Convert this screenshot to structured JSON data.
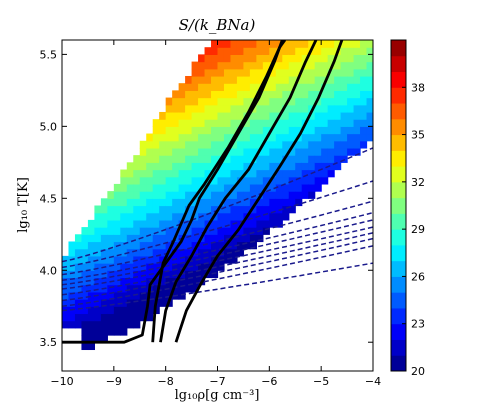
{
  "chart_data": {
    "type": "heatmap",
    "title": "S/(k_BNa)",
    "xlabel": "lg₁₀ρ[g cm⁻³]",
    "ylabel": "lg₁₀ T[K]",
    "xlim": [
      -10,
      -4
    ],
    "ylim": [
      3.3,
      5.6
    ],
    "x_ticks": [
      "−10",
      "−9",
      "−8",
      "−7",
      "−6",
      "−5",
      "−4"
    ],
    "x_tick_values": [
      -10,
      -9,
      -8,
      -7,
      -6,
      -5,
      -4
    ],
    "y_ticks": [
      "3.5",
      "4.0",
      "4.5",
      "5.0",
      "5.5"
    ],
    "y_tick_values": [
      3.5,
      4.0,
      4.5,
      5.0,
      5.5
    ],
    "colorbar": {
      "range": [
        20,
        41
      ],
      "ticks": [
        "20",
        "23",
        "26",
        "29",
        "32",
        "35",
        "38"
      ],
      "tick_values": [
        20,
        23,
        26,
        29,
        32,
        35,
        38
      ],
      "levels": 21,
      "colormap": "jet"
    },
    "grid": false,
    "solid_curves": [
      {
        "points": [
          [
            -10,
            3.5
          ],
          [
            -8.8,
            3.5
          ],
          [
            -8.45,
            3.55
          ],
          [
            -8.35,
            3.75
          ],
          [
            -8.3,
            3.9
          ],
          [
            -8.0,
            4.05
          ],
          [
            -7.7,
            4.2
          ],
          [
            -7.5,
            4.35
          ],
          [
            -7.35,
            4.5
          ],
          [
            -7.0,
            4.7
          ],
          [
            -6.6,
            4.95
          ],
          [
            -6.2,
            5.2
          ],
          [
            -5.9,
            5.45
          ],
          [
            -5.75,
            5.6
          ]
        ]
      },
      {
        "points": [
          [
            -8.25,
            3.5
          ],
          [
            -8.2,
            3.75
          ],
          [
            -8.05,
            4.05
          ],
          [
            -7.85,
            4.2
          ],
          [
            -7.55,
            4.45
          ],
          [
            -7.25,
            4.6
          ],
          [
            -6.8,
            4.85
          ],
          [
            -6.4,
            5.1
          ],
          [
            -6.05,
            5.35
          ],
          [
            -5.8,
            5.55
          ],
          [
            -5.7,
            5.6
          ]
        ]
      },
      {
        "points": [
          [
            -8.1,
            3.5
          ],
          [
            -8.0,
            3.72
          ],
          [
            -7.8,
            3.92
          ],
          [
            -7.5,
            4.1
          ],
          [
            -7.2,
            4.3
          ],
          [
            -6.85,
            4.5
          ],
          [
            -6.4,
            4.7
          ],
          [
            -6.0,
            4.95
          ],
          [
            -5.6,
            5.2
          ],
          [
            -5.3,
            5.45
          ],
          [
            -5.1,
            5.6
          ]
        ]
      },
      {
        "points": [
          [
            -7.8,
            3.5
          ],
          [
            -7.6,
            3.72
          ],
          [
            -7.3,
            3.92
          ],
          [
            -7.0,
            4.1
          ],
          [
            -6.6,
            4.28
          ],
          [
            -6.2,
            4.5
          ],
          [
            -5.8,
            4.72
          ],
          [
            -5.4,
            4.95
          ],
          [
            -5.05,
            5.2
          ],
          [
            -4.75,
            5.45
          ],
          [
            -4.6,
            5.6
          ]
        ]
      }
    ],
    "dashed_curves": [
      {
        "y0": 4.06,
        "y1": 4.85
      },
      {
        "y0": 4.02,
        "y1": 4.62
      },
      {
        "y0": 3.97,
        "y1": 4.48
      },
      {
        "y0": 3.93,
        "y1": 4.4
      },
      {
        "y0": 3.9,
        "y1": 4.35
      },
      {
        "y0": 3.87,
        "y1": 4.3
      },
      {
        "y0": 3.83,
        "y1": 4.26
      },
      {
        "y0": 3.79,
        "y1": 4.22
      },
      {
        "y0": 3.75,
        "y1": 4.17
      },
      {
        "y0": 3.72,
        "y1": 4.05
      }
    ],
    "curve_color_dashed": "#1a1a8c",
    "curve_color_solid": "#000000"
  }
}
